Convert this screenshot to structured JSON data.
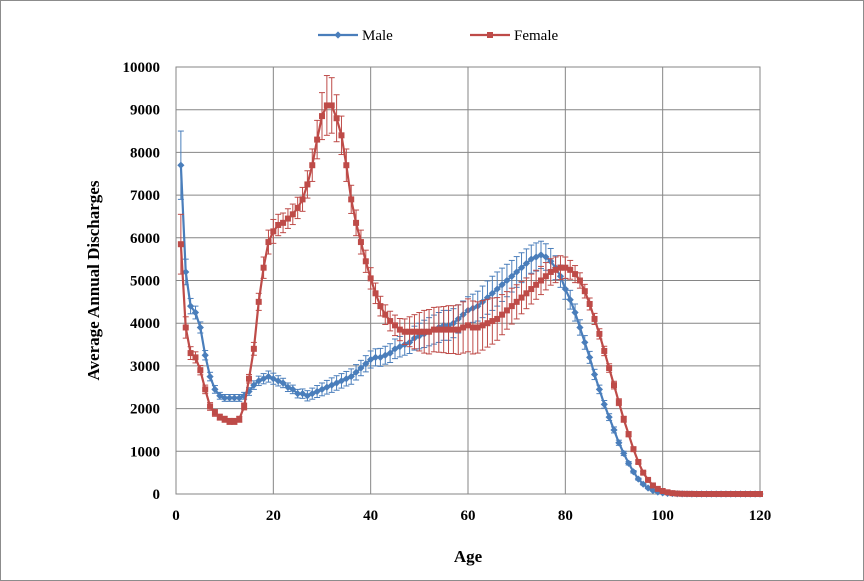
{
  "chart_data": {
    "type": "line",
    "title": "",
    "xlabel": "Age",
    "ylabel": "Average Annual Discharges",
    "xlim": [
      0,
      120
    ],
    "ylim": [
      0,
      10000
    ],
    "x_ticks": [
      0,
      20,
      40,
      60,
      80,
      100,
      120
    ],
    "y_ticks": [
      0,
      1000,
      2000,
      3000,
      4000,
      5000,
      6000,
      7000,
      8000,
      9000,
      10000
    ],
    "grid": true,
    "legend_position": "top",
    "error_bars": true,
    "series": [
      {
        "name": "Male",
        "color": "#4a7ebb",
        "marker": "diamond",
        "points": [
          [
            1,
            7700
          ],
          [
            2,
            5200
          ],
          [
            3,
            4400
          ],
          [
            4,
            4250
          ],
          [
            5,
            3900
          ],
          [
            6,
            3250
          ],
          [
            7,
            2750
          ],
          [
            8,
            2450
          ],
          [
            9,
            2300
          ],
          [
            10,
            2250
          ],
          [
            11,
            2250
          ],
          [
            12,
            2250
          ],
          [
            13,
            2250
          ],
          [
            14,
            2300
          ],
          [
            15,
            2400
          ],
          [
            16,
            2550
          ],
          [
            17,
            2650
          ],
          [
            18,
            2700
          ],
          [
            19,
            2750
          ],
          [
            20,
            2700
          ],
          [
            21,
            2650
          ],
          [
            22,
            2600
          ],
          [
            23,
            2500
          ],
          [
            24,
            2450
          ],
          [
            25,
            2350
          ],
          [
            26,
            2350
          ],
          [
            27,
            2300
          ],
          [
            28,
            2350
          ],
          [
            29,
            2400
          ],
          [
            30,
            2450
          ],
          [
            31,
            2500
          ],
          [
            32,
            2550
          ],
          [
            33,
            2600
          ],
          [
            34,
            2650
          ],
          [
            35,
            2700
          ],
          [
            36,
            2750
          ],
          [
            37,
            2850
          ],
          [
            38,
            2950
          ],
          [
            39,
            3050
          ],
          [
            40,
            3150
          ],
          [
            41,
            3200
          ],
          [
            42,
            3200
          ],
          [
            43,
            3250
          ],
          [
            44,
            3300
          ],
          [
            45,
            3400
          ],
          [
            46,
            3450
          ],
          [
            47,
            3500
          ],
          [
            48,
            3550
          ],
          [
            49,
            3650
          ],
          [
            50,
            3700
          ],
          [
            51,
            3750
          ],
          [
            52,
            3800
          ],
          [
            53,
            3850
          ],
          [
            54,
            3900
          ],
          [
            55,
            3950
          ],
          [
            56,
            3950
          ],
          [
            57,
            4000
          ],
          [
            58,
            4100
          ],
          [
            59,
            4200
          ],
          [
            60,
            4300
          ],
          [
            61,
            4350
          ],
          [
            62,
            4400
          ],
          [
            63,
            4500
          ],
          [
            64,
            4600
          ],
          [
            65,
            4700
          ],
          [
            66,
            4800
          ],
          [
            67,
            4900
          ],
          [
            68,
            5000
          ],
          [
            69,
            5100
          ],
          [
            70,
            5200
          ],
          [
            71,
            5300
          ],
          [
            72,
            5400
          ],
          [
            73,
            5500
          ],
          [
            74,
            5550
          ],
          [
            75,
            5600
          ],
          [
            76,
            5550
          ],
          [
            77,
            5450
          ],
          [
            78,
            5300
          ],
          [
            79,
            5100
          ],
          [
            80,
            4800
          ],
          [
            81,
            4550
          ],
          [
            82,
            4250
          ],
          [
            83,
            3900
          ],
          [
            84,
            3550
          ],
          [
            85,
            3200
          ],
          [
            86,
            2800
          ],
          [
            87,
            2450
          ],
          [
            88,
            2100
          ],
          [
            89,
            1800
          ],
          [
            90,
            1500
          ],
          [
            91,
            1200
          ],
          [
            92,
            950
          ],
          [
            93,
            720
          ],
          [
            94,
            520
          ],
          [
            95,
            350
          ],
          [
            96,
            230
          ],
          [
            97,
            140
          ],
          [
            98,
            80
          ],
          [
            99,
            45
          ],
          [
            100,
            25
          ],
          [
            101,
            15
          ],
          [
            102,
            10
          ],
          [
            103,
            5
          ],
          [
            104,
            3
          ],
          [
            105,
            2
          ],
          [
            106,
            0
          ],
          [
            107,
            0
          ],
          [
            108,
            0
          ],
          [
            109,
            0
          ],
          [
            110,
            0
          ],
          [
            111,
            0
          ],
          [
            112,
            0
          ],
          [
            113,
            0
          ],
          [
            114,
            0
          ],
          [
            115,
            0
          ],
          [
            116,
            0
          ],
          [
            117,
            0
          ],
          [
            118,
            0
          ],
          [
            119,
            0
          ],
          [
            120,
            0
          ]
        ],
        "errors": [
          800,
          300,
          180,
          150,
          130,
          110,
          100,
          90,
          80,
          80,
          80,
          80,
          80,
          80,
          90,
          100,
          110,
          120,
          130,
          130,
          120,
          110,
          100,
          100,
          100,
          110,
          120,
          130,
          140,
          150,
          160,
          170,
          170,
          170,
          170,
          180,
          180,
          180,
          190,
          200,
          200,
          210,
          210,
          220,
          230,
          240,
          250,
          260,
          280,
          300,
          320,
          330,
          340,
          350,
          350,
          350,
          340,
          330,
          320,
          320,
          330,
          350,
          370,
          390,
          400,
          400,
          390,
          380,
          370,
          360,
          350,
          340,
          330,
          330,
          320,
          310,
          300,
          280,
          260,
          240,
          220,
          200,
          180,
          160,
          140,
          120,
          100,
          90,
          80,
          70,
          60,
          50,
          40,
          30,
          25,
          20,
          15,
          10,
          8,
          5,
          4,
          3,
          2,
          1,
          1,
          0,
          0,
          0,
          0,
          0,
          0,
          0,
          0,
          0,
          0,
          0,
          0,
          0,
          0,
          0
        ]
      },
      {
        "name": "Female",
        "color": "#be4b48",
        "marker": "square",
        "points": [
          [
            1,
            5850
          ],
          [
            2,
            3900
          ],
          [
            3,
            3300
          ],
          [
            4,
            3200
          ],
          [
            5,
            2900
          ],
          [
            6,
            2450
          ],
          [
            7,
            2050
          ],
          [
            8,
            1900
          ],
          [
            9,
            1800
          ],
          [
            10,
            1750
          ],
          [
            11,
            1700
          ],
          [
            12,
            1700
          ],
          [
            13,
            1750
          ],
          [
            14,
            2050
          ],
          [
            15,
            2700
          ],
          [
            16,
            3400
          ],
          [
            17,
            4500
          ],
          [
            18,
            5300
          ],
          [
            19,
            5900
          ],
          [
            20,
            6150
          ],
          [
            21,
            6300
          ],
          [
            22,
            6350
          ],
          [
            23,
            6450
          ],
          [
            24,
            6550
          ],
          [
            25,
            6700
          ],
          [
            26,
            6900
          ],
          [
            27,
            7250
          ],
          [
            28,
            7700
          ],
          [
            29,
            8300
          ],
          [
            30,
            8850
          ],
          [
            31,
            9100
          ],
          [
            32,
            9100
          ],
          [
            33,
            8800
          ],
          [
            34,
            8400
          ],
          [
            35,
            7700
          ],
          [
            36,
            6900
          ],
          [
            37,
            6350
          ],
          [
            38,
            5900
          ],
          [
            39,
            5450
          ],
          [
            40,
            5050
          ],
          [
            41,
            4700
          ],
          [
            42,
            4400
          ],
          [
            43,
            4200
          ],
          [
            44,
            4050
          ],
          [
            45,
            3950
          ],
          [
            46,
            3850
          ],
          [
            47,
            3800
          ],
          [
            48,
            3800
          ],
          [
            49,
            3800
          ],
          [
            50,
            3800
          ],
          [
            51,
            3800
          ],
          [
            52,
            3800
          ],
          [
            53,
            3850
          ],
          [
            54,
            3850
          ],
          [
            55,
            3850
          ],
          [
            56,
            3850
          ],
          [
            57,
            3850
          ],
          [
            58,
            3850
          ],
          [
            59,
            3900
          ],
          [
            60,
            3950
          ],
          [
            61,
            3900
          ],
          [
            62,
            3900
          ],
          [
            63,
            3950
          ],
          [
            64,
            4000
          ],
          [
            65,
            4050
          ],
          [
            66,
            4100
          ],
          [
            67,
            4200
          ],
          [
            68,
            4300
          ],
          [
            69,
            4400
          ],
          [
            70,
            4500
          ],
          [
            71,
            4600
          ],
          [
            72,
            4700
          ],
          [
            73,
            4800
          ],
          [
            74,
            4900
          ],
          [
            75,
            5000
          ],
          [
            76,
            5100
          ],
          [
            77,
            5200
          ],
          [
            78,
            5250
          ],
          [
            79,
            5300
          ],
          [
            80,
            5300
          ],
          [
            81,
            5250
          ],
          [
            82,
            5150
          ],
          [
            83,
            5000
          ],
          [
            84,
            4750
          ],
          [
            85,
            4450
          ],
          [
            86,
            4100
          ],
          [
            87,
            3750
          ],
          [
            88,
            3350
          ],
          [
            89,
            2950
          ],
          [
            90,
            2550
          ],
          [
            91,
            2150
          ],
          [
            92,
            1750
          ],
          [
            93,
            1400
          ],
          [
            94,
            1050
          ],
          [
            95,
            750
          ],
          [
            96,
            500
          ],
          [
            97,
            330
          ],
          [
            98,
            200
          ],
          [
            99,
            120
          ],
          [
            100,
            70
          ],
          [
            101,
            40
          ],
          [
            102,
            20
          ],
          [
            103,
            10
          ],
          [
            104,
            5
          ],
          [
            105,
            3
          ],
          [
            106,
            2
          ],
          [
            107,
            0
          ],
          [
            108,
            0
          ],
          [
            109,
            0
          ],
          [
            110,
            0
          ],
          [
            111,
            0
          ],
          [
            112,
            0
          ],
          [
            113,
            0
          ],
          [
            114,
            0
          ],
          [
            115,
            0
          ],
          [
            116,
            0
          ],
          [
            117,
            0
          ],
          [
            118,
            0
          ],
          [
            119,
            0
          ],
          [
            120,
            0
          ]
        ],
        "errors": [
          700,
          250,
          150,
          130,
          110,
          100,
          90,
          80,
          70,
          70,
          70,
          70,
          70,
          80,
          100,
          150,
          200,
          250,
          280,
          280,
          250,
          230,
          230,
          240,
          250,
          280,
          320,
          380,
          450,
          550,
          700,
          650,
          550,
          450,
          380,
          330,
          300,
          280,
          260,
          250,
          240,
          230,
          230,
          230,
          240,
          260,
          300,
          350,
          400,
          450,
          500,
          520,
          520,
          530,
          540,
          560,
          560,
          580,
          600,
          620,
          620,
          600,
          580,
          560,
          540,
          500,
          470,
          440,
          420,
          400,
          380,
          360,
          350,
          340,
          330,
          320,
          310,
          300,
          280,
          250,
          220,
          200,
          180,
          160,
          140,
          130,
          120,
          110,
          100,
          90,
          80,
          70,
          60,
          50,
          40,
          30,
          20,
          15,
          10,
          8,
          5,
          3,
          2,
          1,
          1,
          0,
          0,
          0,
          0,
          0,
          0,
          0,
          0,
          0,
          0,
          0,
          0,
          0,
          0,
          0
        ]
      }
    ]
  }
}
